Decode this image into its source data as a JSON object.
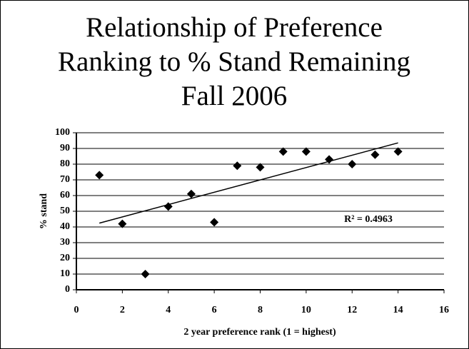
{
  "chart_data": {
    "type": "scatter",
    "title": [
      "Relationship of Preference",
      "Ranking to % Stand Remaining",
      "Fall 2006"
    ],
    "x_label": "2 year preference rank (1 = highest)",
    "y_label": "% stand",
    "x": [
      1,
      2,
      3,
      4,
      5,
      6,
      7,
      8,
      9,
      10,
      11,
      12,
      13,
      14
    ],
    "series": [
      {
        "name": "% stand",
        "color": "#000000",
        "values": [
          73,
          42,
          10,
          53,
          61,
          43,
          79,
          78,
          88,
          88,
          83,
          80,
          86,
          88
        ]
      }
    ],
    "trendline": "linear",
    "annotation": "R² = 0.4963",
    "xlim": [
      0,
      16
    ],
    "xticks": [
      0,
      2,
      4,
      6,
      8,
      10,
      12,
      14,
      16
    ],
    "ylim": [
      0,
      100
    ],
    "yticks": [
      0,
      10,
      20,
      30,
      40,
      50,
      60,
      70,
      80,
      90,
      100
    ],
    "grid": true
  }
}
